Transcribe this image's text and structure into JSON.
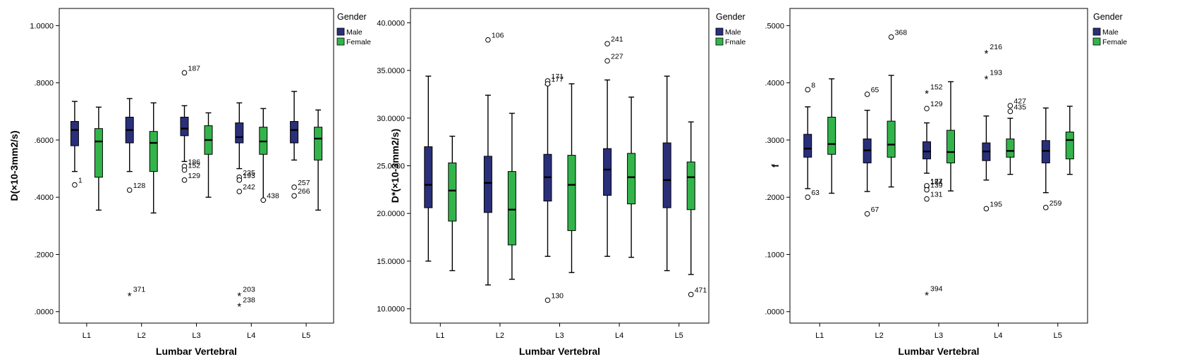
{
  "chart_data": [
    {
      "type": "box",
      "ylabel": "D(×10-3mm2/s)",
      "xlabel": "Lumbar Vertebral",
      "categories": [
        "L1",
        "L2",
        "L3",
        "L4",
        "L5"
      ],
      "ylim": [
        -0.04,
        1.06
      ],
      "yticks": [
        0.0,
        0.2,
        0.4,
        0.6,
        0.8,
        1.0
      ],
      "ytick_labels": [
        ".0000",
        ".2000",
        ".4000",
        ".6000",
        ".8000",
        "1.0000"
      ],
      "legend": {
        "title": "Gender",
        "placement": "right",
        "entries": [
          {
            "name": "Male",
            "color": "#2a2f7a"
          },
          {
            "name": "Female",
            "color": "#33b44a"
          }
        ]
      },
      "series": [
        {
          "name": "Male",
          "color": "#2a2f7a",
          "boxes": [
            {
              "min": 0.49,
              "q1": 0.58,
              "median": 0.635,
              "q3": 0.665,
              "max": 0.735
            },
            {
              "min": 0.49,
              "q1": 0.59,
              "median": 0.635,
              "q3": 0.68,
              "max": 0.745
            },
            {
              "min": 0.525,
              "q1": 0.615,
              "median": 0.64,
              "q3": 0.68,
              "max": 0.72
            },
            {
              "min": 0.5,
              "q1": 0.59,
              "median": 0.61,
              "q3": 0.66,
              "max": 0.73
            },
            {
              "min": 0.53,
              "q1": 0.59,
              "median": 0.635,
              "q3": 0.665,
              "max": 0.77
            }
          ]
        },
        {
          "name": "Female",
          "color": "#33b44a",
          "boxes": [
            {
              "min": 0.355,
              "q1": 0.47,
              "median": 0.595,
              "q3": 0.64,
              "max": 0.715
            },
            {
              "min": 0.345,
              "q1": 0.49,
              "median": 0.59,
              "q3": 0.63,
              "max": 0.73
            },
            {
              "min": 0.4,
              "q1": 0.55,
              "median": 0.6,
              "q3": 0.65,
              "max": 0.695
            },
            {
              "min": 0.39,
              "q1": 0.55,
              "median": 0.595,
              "q3": 0.645,
              "max": 0.71
            },
            {
              "min": 0.355,
              "q1": 0.53,
              "median": 0.605,
              "q3": 0.645,
              "max": 0.705
            }
          ]
        }
      ],
      "outliers": [
        {
          "cat": 0,
          "series": 0,
          "y": 0.443,
          "marker": "circle",
          "label": "1"
        },
        {
          "cat": 1,
          "series": 0,
          "y": 0.425,
          "marker": "circle",
          "label": "128"
        },
        {
          "cat": 1,
          "series": 0,
          "y": 0.062,
          "marker": "star",
          "label": "371"
        },
        {
          "cat": 2,
          "series": 0,
          "y": 0.835,
          "marker": "circle",
          "label": "187"
        },
        {
          "cat": 2,
          "series": 0,
          "y": 0.508,
          "marker": "circle",
          "label": "186"
        },
        {
          "cat": 2,
          "series": 0,
          "y": 0.495,
          "marker": "circle",
          "label": "152"
        },
        {
          "cat": 2,
          "series": 0,
          "y": 0.46,
          "marker": "circle",
          "label": "129"
        },
        {
          "cat": 3,
          "series": 0,
          "y": 0.47,
          "marker": "circle",
          "label": "235"
        },
        {
          "cat": 3,
          "series": 0,
          "y": 0.46,
          "marker": "circle",
          "label": "193"
        },
        {
          "cat": 3,
          "series": 0,
          "y": 0.42,
          "marker": "circle",
          "label": "242"
        },
        {
          "cat": 3,
          "series": 0,
          "y": 0.062,
          "marker": "star",
          "label": "203"
        },
        {
          "cat": 3,
          "series": 0,
          "y": 0.025,
          "marker": "star",
          "label": "238"
        },
        {
          "cat": 3,
          "series": 1,
          "y": 0.39,
          "marker": "circle",
          "label": "438"
        },
        {
          "cat": 4,
          "series": 0,
          "y": 0.435,
          "marker": "circle",
          "label": "257"
        },
        {
          "cat": 4,
          "series": 0,
          "y": 0.405,
          "marker": "circle",
          "label": "266"
        }
      ]
    },
    {
      "type": "box",
      "ylabel": "D*(×10-3mm2/s)",
      "xlabel": "Lumbar Vertebral",
      "categories": [
        "L1",
        "L2",
        "L3",
        "L4",
        "L5"
      ],
      "ylim": [
        8.5,
        41.5
      ],
      "yticks": [
        10,
        15,
        20,
        25,
        30,
        35,
        40
      ],
      "ytick_labels": [
        "10.0000",
        "15.0000",
        "20.0000",
        "25.0000",
        "30.0000",
        "35.0000",
        "40.0000"
      ],
      "legend": {
        "title": "Gender",
        "placement": "right",
        "entries": [
          {
            "name": "Male",
            "color": "#2a2f7a"
          },
          {
            "name": "Fmale",
            "color": "#33b44a"
          }
        ]
      },
      "series": [
        {
          "name": "Male",
          "color": "#2a2f7a",
          "boxes": [
            {
              "min": 15.0,
              "q1": 20.6,
              "median": 23.0,
              "q3": 27.0,
              "max": 34.4
            },
            {
              "min": 12.5,
              "q1": 20.1,
              "median": 23.2,
              "q3": 26.0,
              "max": 32.4
            },
            {
              "min": 15.5,
              "q1": 21.3,
              "median": 23.8,
              "q3": 26.2,
              "max": 33.5
            },
            {
              "min": 15.5,
              "q1": 21.9,
              "median": 24.6,
              "q3": 26.8,
              "max": 34.0
            },
            {
              "min": 14.0,
              "q1": 20.6,
              "median": 23.5,
              "q3": 27.4,
              "max": 34.4
            }
          ]
        },
        {
          "name": "Fmale",
          "color": "#33b44a",
          "boxes": [
            {
              "min": 14.0,
              "q1": 19.2,
              "median": 22.4,
              "q3": 25.3,
              "max": 28.1
            },
            {
              "min": 13.1,
              "q1": 16.7,
              "median": 20.4,
              "q3": 24.4,
              "max": 30.5
            },
            {
              "min": 13.8,
              "q1": 18.2,
              "median": 23.0,
              "q3": 26.1,
              "max": 33.6
            },
            {
              "min": 15.4,
              "q1": 21.0,
              "median": 23.8,
              "q3": 26.3,
              "max": 32.2
            },
            {
              "min": 13.6,
              "q1": 20.4,
              "median": 23.8,
              "q3": 25.4,
              "max": 29.6
            }
          ]
        }
      ],
      "outliers": [
        {
          "cat": 1,
          "series": 0,
          "y": 38.2,
          "marker": "circle",
          "label": "106"
        },
        {
          "cat": 2,
          "series": 0,
          "y": 33.9,
          "marker": "circle",
          "label": "171"
        },
        {
          "cat": 2,
          "series": 0,
          "y": 33.6,
          "marker": "circle",
          "label": "177"
        },
        {
          "cat": 2,
          "series": 0,
          "y": 10.9,
          "marker": "circle",
          "label": "130"
        },
        {
          "cat": 3,
          "series": 0,
          "y": 37.8,
          "marker": "circle",
          "label": "241"
        },
        {
          "cat": 3,
          "series": 0,
          "y": 36.0,
          "marker": "circle",
          "label": "227"
        },
        {
          "cat": 4,
          "series": 1,
          "y": 11.5,
          "marker": "circle",
          "label": "471"
        }
      ]
    },
    {
      "type": "box",
      "ylabel": "f",
      "xlabel": "Lumbar Vertebral",
      "categories": [
        "L1",
        "L2",
        "L3",
        "L4",
        "L5"
      ],
      "ylim": [
        -0.02,
        0.53
      ],
      "yticks": [
        0.0,
        0.1,
        0.2,
        0.3,
        0.4,
        0.5
      ],
      "ytick_labels": [
        ".0000",
        ".1000",
        ".2000",
        ".3000",
        ".4000",
        ".5000"
      ],
      "legend": {
        "title": "Gender",
        "placement": "right",
        "entries": [
          {
            "name": "Male",
            "color": "#2a2f7a"
          },
          {
            "name": "Female",
            "color": "#33b44a"
          }
        ]
      },
      "series": [
        {
          "name": "Male",
          "color": "#2a2f7a",
          "boxes": [
            {
              "min": 0.215,
              "q1": 0.27,
              "median": 0.285,
              "q3": 0.31,
              "max": 0.358
            },
            {
              "min": 0.21,
              "q1": 0.26,
              "median": 0.282,
              "q3": 0.302,
              "max": 0.352
            },
            {
              "min": 0.242,
              "q1": 0.267,
              "median": 0.28,
              "q3": 0.297,
              "max": 0.33
            },
            {
              "min": 0.23,
              "q1": 0.264,
              "median": 0.28,
              "q3": 0.295,
              "max": 0.342
            },
            {
              "min": 0.208,
              "q1": 0.26,
              "median": 0.281,
              "q3": 0.299,
              "max": 0.356
            }
          ]
        },
        {
          "name": "Female",
          "color": "#33b44a",
          "boxes": [
            {
              "min": 0.207,
              "q1": 0.275,
              "median": 0.293,
              "q3": 0.34,
              "max": 0.407
            },
            {
              "min": 0.218,
              "q1": 0.27,
              "median": 0.292,
              "q3": 0.333,
              "max": 0.413
            },
            {
              "min": 0.211,
              "q1": 0.26,
              "median": 0.279,
              "q3": 0.317,
              "max": 0.402
            },
            {
              "min": 0.24,
              "q1": 0.27,
              "median": 0.281,
              "q3": 0.302,
              "max": 0.338
            },
            {
              "min": 0.24,
              "q1": 0.267,
              "median": 0.3,
              "q3": 0.314,
              "max": 0.359
            }
          ]
        }
      ],
      "outliers": [
        {
          "cat": 0,
          "series": 0,
          "y": 0.388,
          "marker": "circle",
          "label": "8"
        },
        {
          "cat": 0,
          "series": 0,
          "y": 0.2,
          "marker": "circle",
          "label": "63"
        },
        {
          "cat": 1,
          "series": 0,
          "y": 0.38,
          "marker": "circle",
          "label": "65"
        },
        {
          "cat": 1,
          "series": 0,
          "y": 0.171,
          "marker": "circle",
          "label": "67"
        },
        {
          "cat": 1,
          "series": 1,
          "y": 0.48,
          "marker": "circle",
          "label": "368"
        },
        {
          "cat": 2,
          "series": 0,
          "y": 0.385,
          "marker": "star",
          "label": "152"
        },
        {
          "cat": 2,
          "series": 0,
          "y": 0.355,
          "marker": "circle",
          "label": "129"
        },
        {
          "cat": 2,
          "series": 0,
          "y": 0.219,
          "marker": "circle",
          "label": "184"
        },
        {
          "cat": 2,
          "series": 0,
          "y": 0.22,
          "marker": "circle",
          "label": "177"
        },
        {
          "cat": 2,
          "series": 0,
          "y": 0.213,
          "marker": "circle",
          "label": "139"
        },
        {
          "cat": 2,
          "series": 0,
          "y": 0.197,
          "marker": "circle",
          "label": "131"
        },
        {
          "cat": 2,
          "series": 0,
          "y": 0.032,
          "marker": "star",
          "label": "394"
        },
        {
          "cat": 3,
          "series": 0,
          "y": 0.455,
          "marker": "star",
          "label": "216"
        },
        {
          "cat": 3,
          "series": 0,
          "y": 0.41,
          "marker": "star",
          "label": "193"
        },
        {
          "cat": 3,
          "series": 0,
          "y": 0.18,
          "marker": "circle",
          "label": "195"
        },
        {
          "cat": 3,
          "series": 1,
          "y": 0.36,
          "marker": "circle",
          "label": "427"
        },
        {
          "cat": 3,
          "series": 1,
          "y": 0.35,
          "marker": "circle",
          "label": "435"
        },
        {
          "cat": 4,
          "series": 0,
          "y": 0.182,
          "marker": "circle",
          "label": "259"
        }
      ]
    }
  ]
}
